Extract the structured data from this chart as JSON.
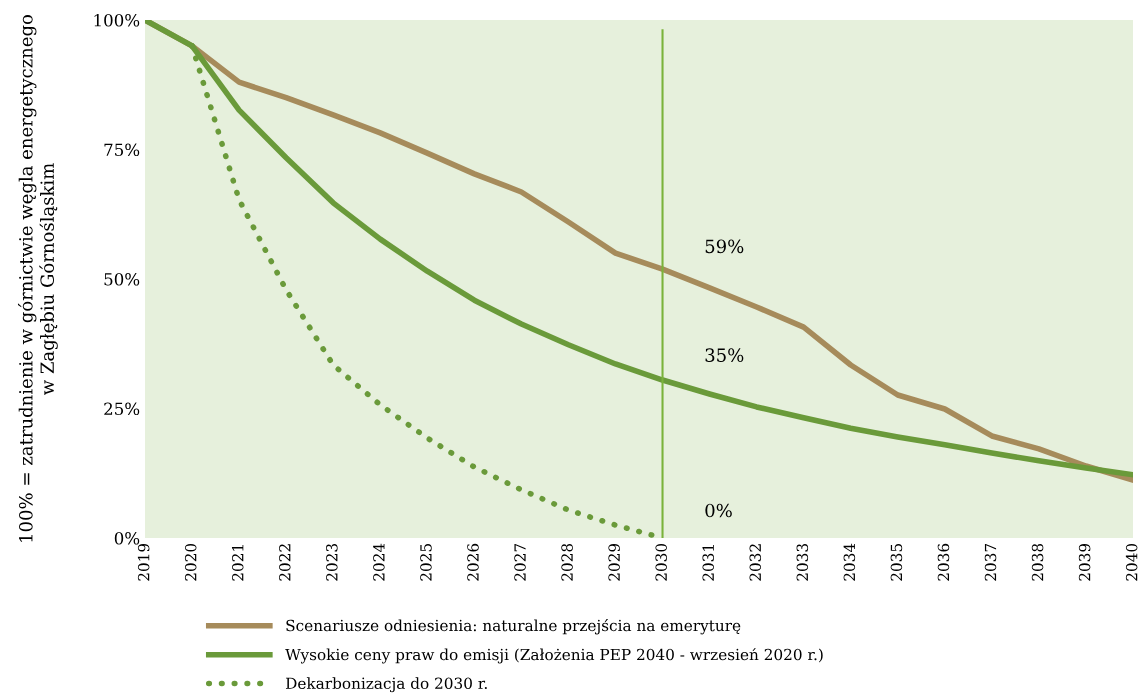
{
  "chart_data": {
    "type": "line",
    "ylabel": "100% = zatrudnienie w górnictwie węgla energetycznego\nw Zagłębiu Górnośląskim",
    "categories": [
      "2019",
      "2020",
      "2021",
      "2022",
      "2023",
      "2024",
      "2025",
      "2026",
      "2027",
      "2028",
      "2029",
      "2030",
      "2031",
      "2032",
      "2033",
      "2034",
      "2035",
      "2036",
      "2037",
      "2038",
      "2039",
      "2040"
    ],
    "series": [
      {
        "name": "Scenariusze odniesienia: naturalne przejścia na emeryturę",
        "color": "#a68b5b",
        "line_style": "solid",
        "values": [
          100,
          95,
          88,
          85,
          81.7,
          78.2,
          74.3,
          70.3,
          66.8,
          61,
          55,
          51.9,
          48.3,
          44.6,
          40.7,
          33.4,
          27.6,
          24.9,
          19.7,
          17.2,
          13.9,
          11.2
        ]
      },
      {
        "name": "Wysokie ceny praw do emisji (Założenia PEP 2040 - wrzesień 2020 r.)",
        "color": "#6a9a3a",
        "line_style": "solid",
        "values": [
          100,
          95,
          82.6,
          73.4,
          64.7,
          57.7,
          51.5,
          45.9,
          41.3,
          37.3,
          33.6,
          30.5,
          27.8,
          25.3,
          23.2,
          21.2,
          19.5,
          18,
          16.4,
          14.9,
          13.5,
          12.2
        ]
      },
      {
        "name": "Dekarbonizacja do 2030 r.",
        "color": "#6a9a3a",
        "line_style": "dotted",
        "values": [
          null,
          95,
          65.3,
          47.9,
          33.4,
          25.7,
          19.3,
          13.7,
          9.3,
          5.4,
          2.5,
          0,
          null,
          null,
          null,
          null,
          null,
          null,
          null,
          null,
          null,
          null
        ]
      }
    ],
    "ylim": [
      0,
      100
    ],
    "yticks": [
      {
        "value": 0,
        "label": "0%"
      },
      {
        "value": 25,
        "label": "25%"
      },
      {
        "value": 50,
        "label": "50%"
      },
      {
        "value": 75,
        "label": "75%"
      },
      {
        "value": 100,
        "label": "100%"
      }
    ],
    "ref_lines": [
      {
        "axis": "x",
        "value": "2030",
        "color": "#7ab33a"
      }
    ],
    "annotations": [
      {
        "text": "59%",
        "x": "2030",
        "y": 56
      },
      {
        "text": "35%",
        "x": "2030",
        "y": 35
      },
      {
        "text": "0%",
        "x": "2030",
        "y": 5
      }
    ],
    "grid": false,
    "legend": "bottom",
    "marker": "none"
  }
}
